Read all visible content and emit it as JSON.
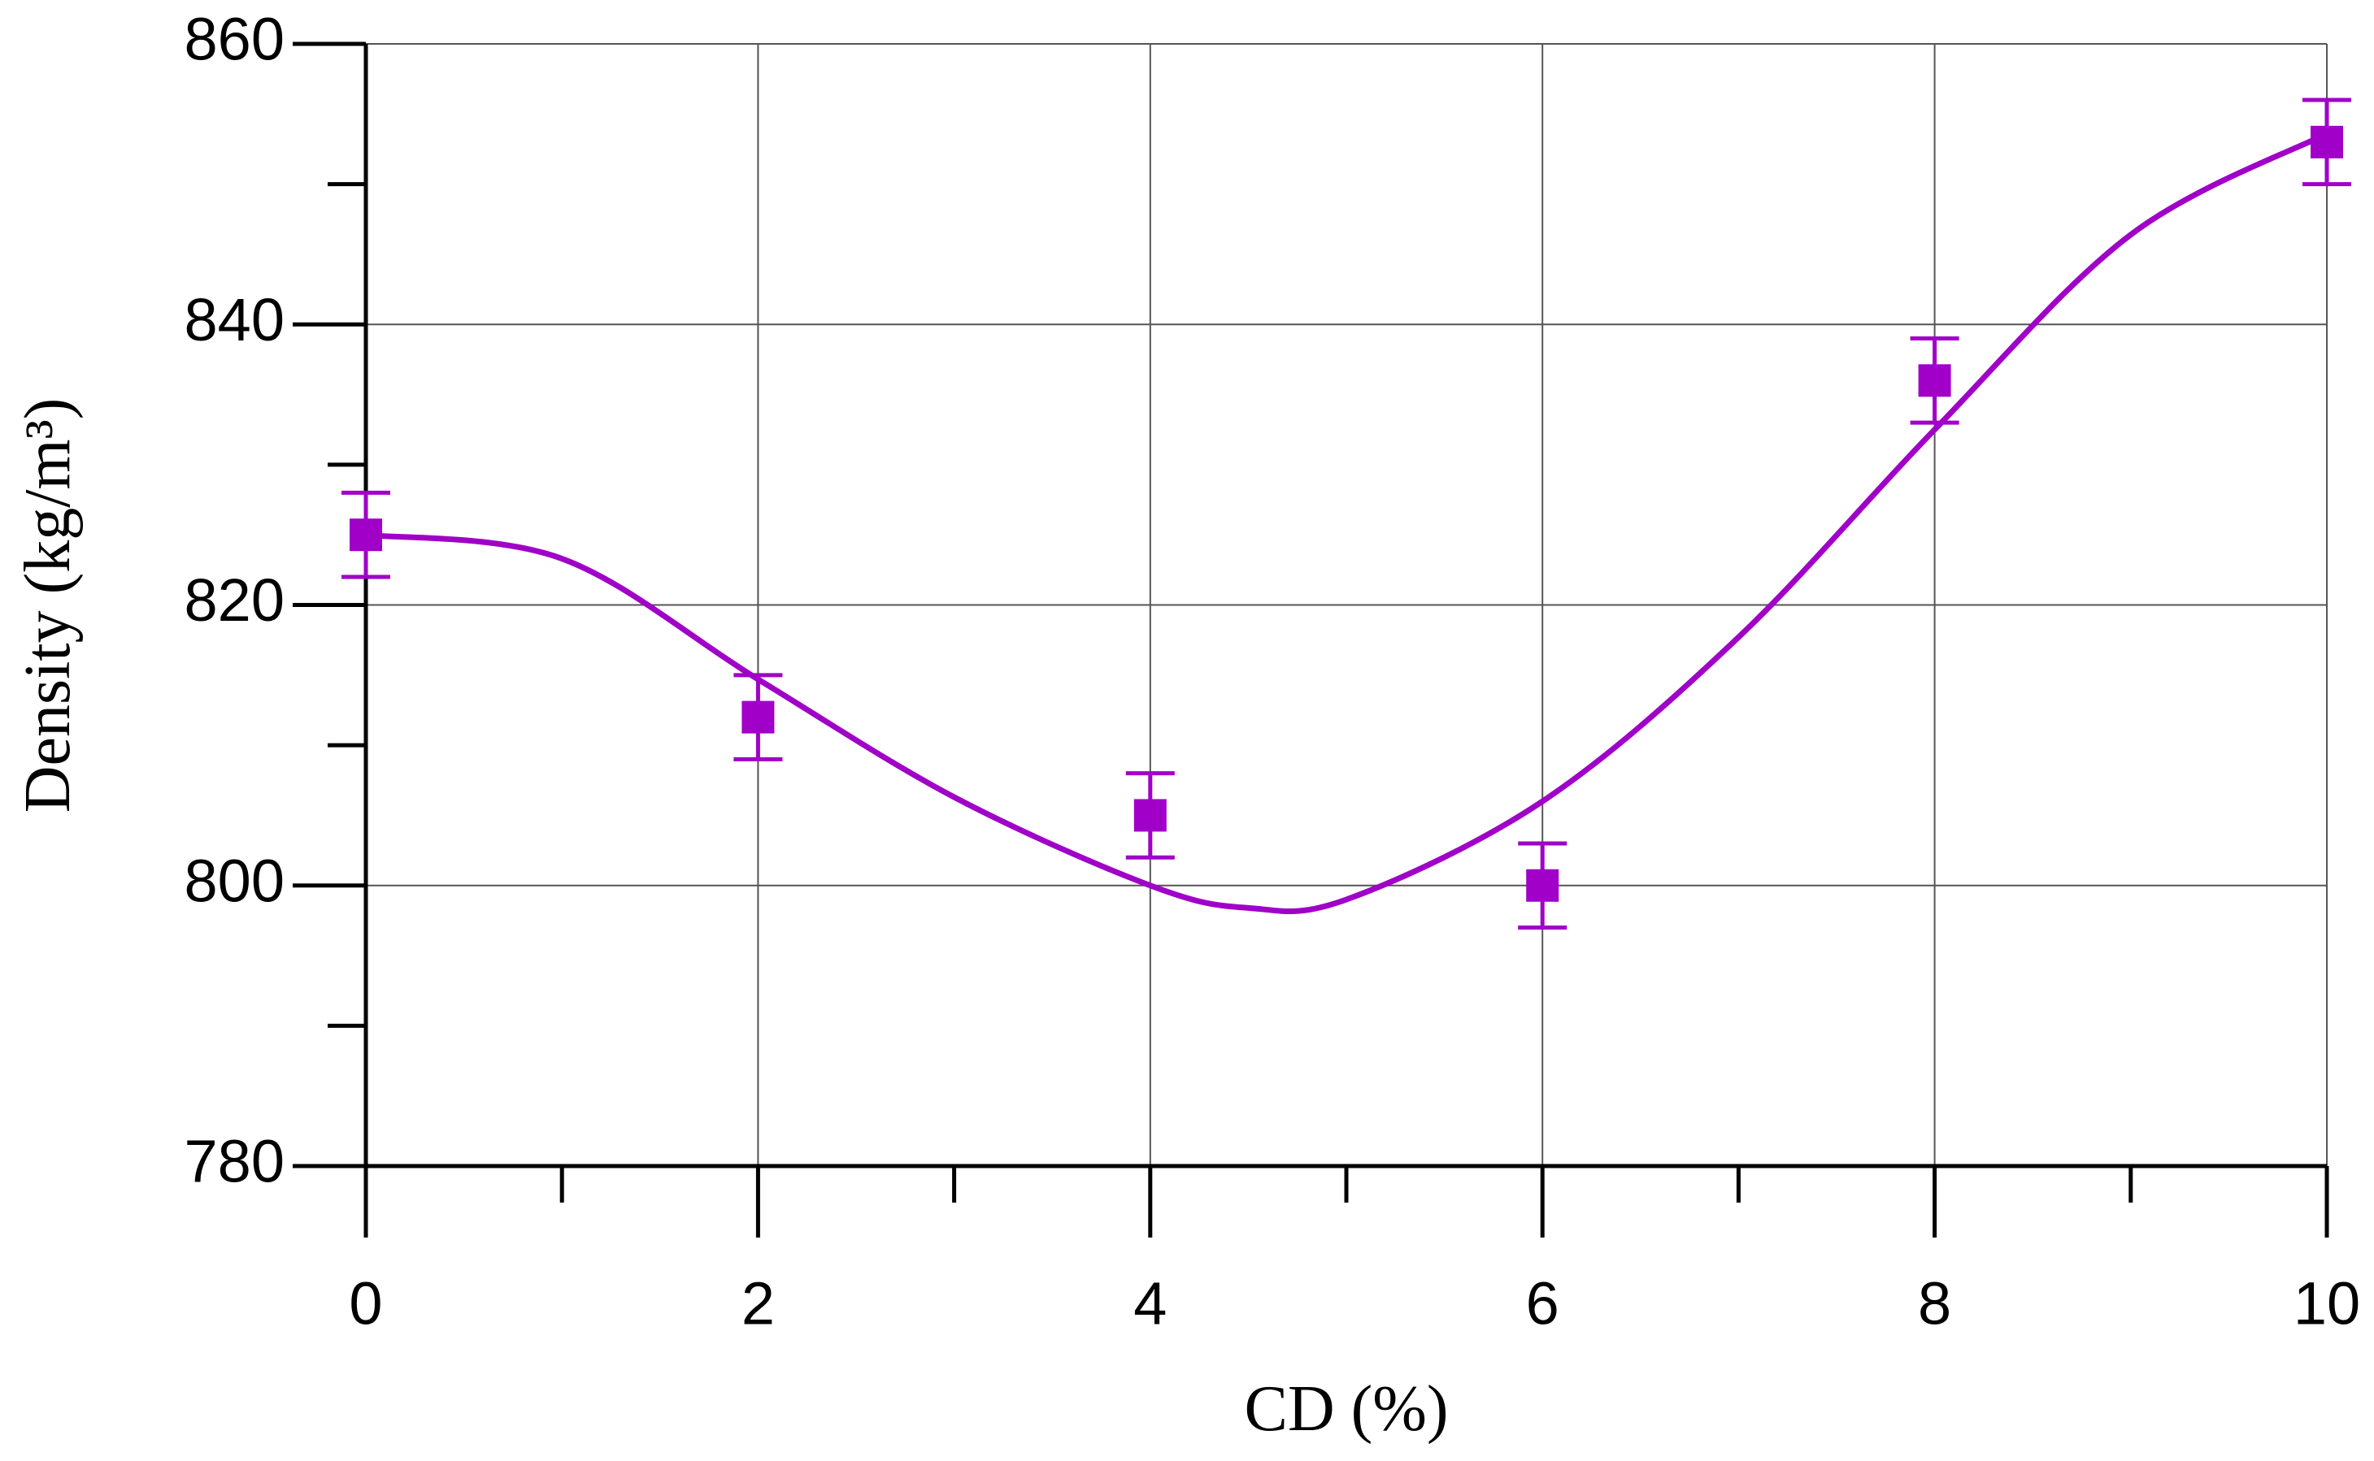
{
  "chart_data": {
    "type": "scatter",
    "xlabel": "CD (%)",
    "ylabel": "Density (kg/m³)",
    "xlim": [
      0,
      10
    ],
    "xticks": [
      0,
      2,
      4,
      6,
      8,
      10
    ],
    "xminorticks": [
      1,
      3,
      5,
      7,
      9
    ],
    "ylim": [
      780,
      860
    ],
    "yticks": [
      780,
      800,
      820,
      840,
      860
    ],
    "yminorticks": [
      790,
      810,
      830,
      850
    ],
    "grid": true,
    "series": [
      {
        "color": "#a000c8",
        "x": [
          0,
          2,
          4,
          6,
          8,
          10
        ],
        "values": [
          825,
          812,
          805,
          800,
          836,
          853
        ],
        "error": [
          3,
          3,
          3,
          3,
          3,
          3
        ]
      }
    ],
    "fit": {
      "color": "#a000c8",
      "x": [
        0,
        1,
        2,
        3,
        4,
        4.5,
        5,
        6,
        7,
        8,
        9,
        10
      ],
      "values": [
        825,
        823.3,
        814.7,
        806.3,
        800,
        798.4,
        799,
        806,
        817.7,
        832.5,
        846.4,
        853.6
      ]
    }
  }
}
